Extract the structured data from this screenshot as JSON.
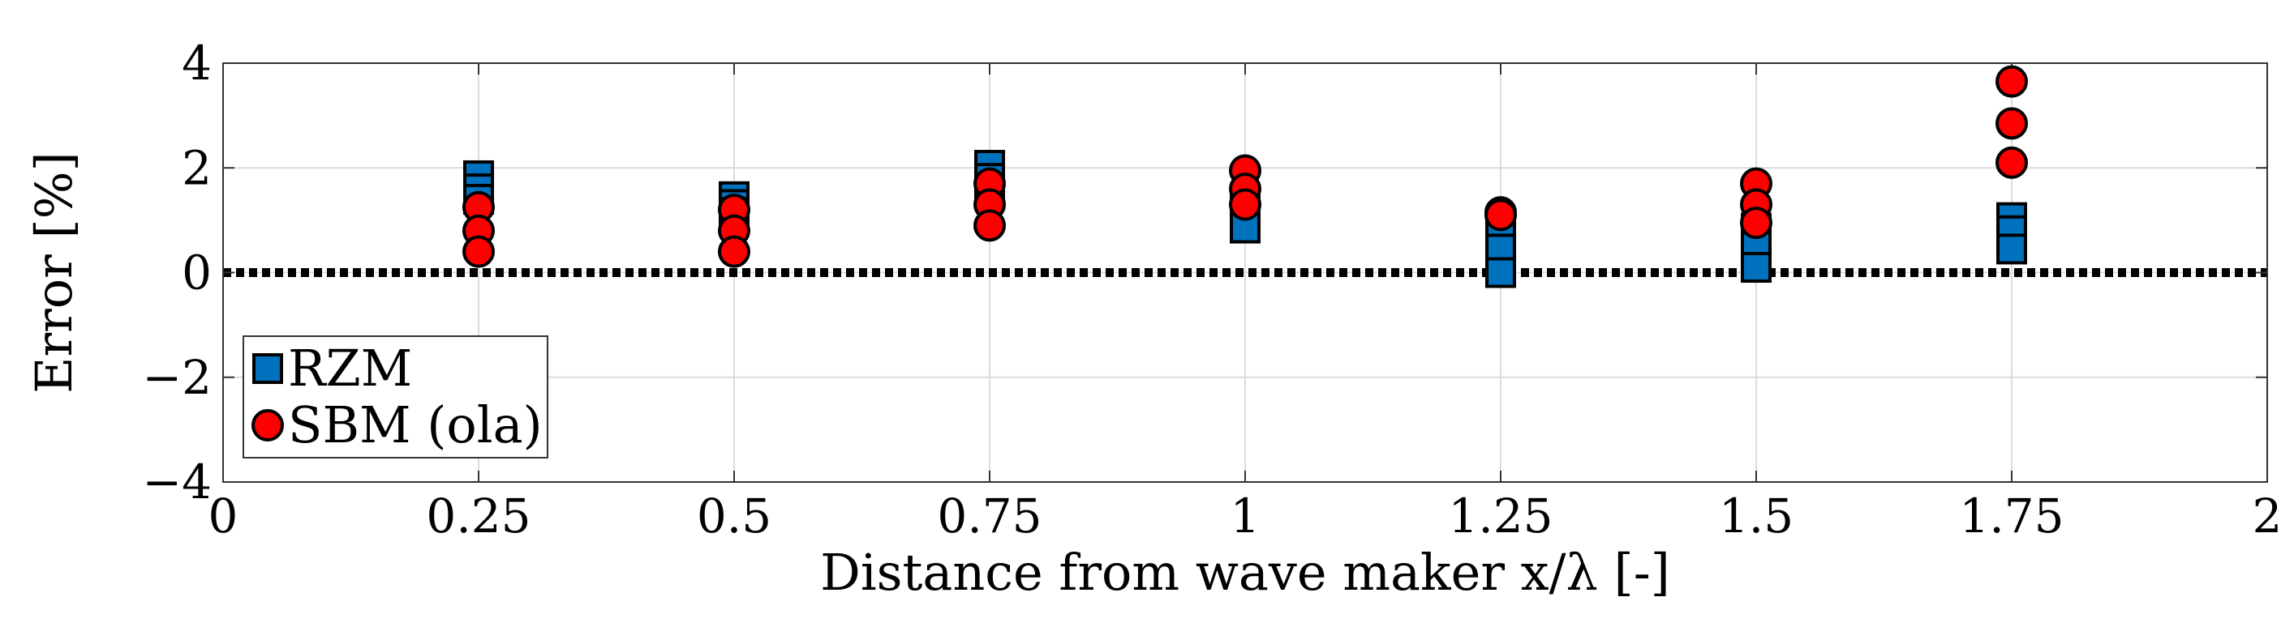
{
  "chart_data": {
    "type": "scatter",
    "title": "",
    "xlabel": "Distance from wave maker x/λ [-]",
    "ylabel": "Error [%]",
    "xlim": [
      0,
      2
    ],
    "ylim": [
      -4,
      4
    ],
    "x_ticks": [
      0,
      0.25,
      0.5,
      0.75,
      1,
      1.25,
      1.5,
      1.75,
      2
    ],
    "x_tick_labels": [
      "0",
      "0.25",
      "0.5",
      "0.75",
      "1",
      "1.25",
      "1.5",
      "1.75",
      "2"
    ],
    "y_ticks": [
      -4,
      -2,
      0,
      2,
      4
    ],
    "y_tick_labels": [
      "−4",
      "−2",
      "0",
      "2",
      "4"
    ],
    "grid": true,
    "legend_position": "bottom-left",
    "reference_line": {
      "y": 0,
      "style": "dotted"
    },
    "series": [
      {
        "name": "RZM",
        "marker": "square",
        "color": "#0072BD",
        "points": [
          {
            "x": 0.25,
            "y": 1.85
          },
          {
            "x": 0.25,
            "y": 1.6
          },
          {
            "x": 0.25,
            "y": 1.4
          },
          {
            "x": 0.5,
            "y": 1.45
          },
          {
            "x": 0.5,
            "y": 1.3
          },
          {
            "x": 0.5,
            "y": 1.15
          },
          {
            "x": 0.75,
            "y": 2.05
          },
          {
            "x": 0.75,
            "y": 1.8
          },
          {
            "x": 0.75,
            "y": 1.55
          },
          {
            "x": 1,
            "y": 1.35
          },
          {
            "x": 1,
            "y": 1.1
          },
          {
            "x": 1,
            "y": 0.85
          },
          {
            "x": 1.25,
            "y": 0.95
          },
          {
            "x": 1.25,
            "y": 0.45
          },
          {
            "x": 1.25,
            "y": 0.0
          },
          {
            "x": 1.5,
            "y": 0.85
          },
          {
            "x": 1.5,
            "y": 0.5
          },
          {
            "x": 1.5,
            "y": 0.1
          },
          {
            "x": 1.75,
            "y": 1.05
          },
          {
            "x": 1.75,
            "y": 0.8
          },
          {
            "x": 1.75,
            "y": 0.45
          }
        ]
      },
      {
        "name": "SBM (ola)",
        "marker": "circle",
        "color": "#FF0000",
        "points": [
          {
            "x": 0.25,
            "y": 1.25
          },
          {
            "x": 0.25,
            "y": 0.8
          },
          {
            "x": 0.25,
            "y": 0.4
          },
          {
            "x": 0.5,
            "y": 1.2
          },
          {
            "x": 0.5,
            "y": 0.8
          },
          {
            "x": 0.5,
            "y": 0.4
          },
          {
            "x": 0.75,
            "y": 1.7
          },
          {
            "x": 0.75,
            "y": 1.3
          },
          {
            "x": 0.75,
            "y": 0.9
          },
          {
            "x": 1,
            "y": 1.95
          },
          {
            "x": 1,
            "y": 1.6
          },
          {
            "x": 1,
            "y": 1.3
          },
          {
            "x": 1.25,
            "y": 1.15
          },
          {
            "x": 1.25,
            "y": 1.1
          },
          {
            "x": 1.5,
            "y": 1.7
          },
          {
            "x": 1.5,
            "y": 1.3
          },
          {
            "x": 1.5,
            "y": 0.95
          },
          {
            "x": 1.75,
            "y": 3.65
          },
          {
            "x": 1.75,
            "y": 2.85
          },
          {
            "x": 1.75,
            "y": 2.1
          }
        ]
      }
    ]
  }
}
